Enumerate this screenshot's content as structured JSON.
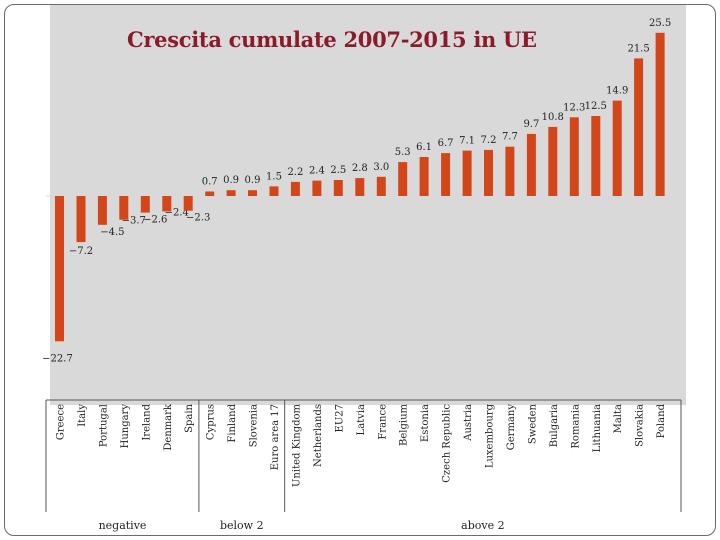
{
  "chart_data": {
    "type": "bar",
    "title": "Crescita cumulate 2007-2015 in UE",
    "xlabel": "",
    "ylabel": "",
    "ylim": [
      -24,
      27
    ],
    "grid": false,
    "categories": [
      "Greece",
      "Italy",
      "Portugal",
      "Hungary",
      "Ireland",
      "Denmark",
      "Spain",
      "Cyprus",
      "Finland",
      "Slovenia",
      "Euro area 17",
      "United Kingdom",
      "Netherlands",
      "EU27",
      "Latvia",
      "France",
      "Belgium",
      "Estonia",
      "Czech Republic",
      "Austria",
      "Luxembourg",
      "Germany",
      "Sweden",
      "Bulgaria",
      "Romania",
      "Lithuania",
      "Malta",
      "Slovakia",
      "Poland"
    ],
    "values": [
      -22.7,
      -7.2,
      -4.5,
      -3.7,
      -2.6,
      -2.4,
      -2.3,
      0.7,
      0.9,
      0.9,
      1.5,
      2.2,
      2.4,
      2.5,
      2.8,
      3.0,
      5.3,
      6.1,
      6.7,
      7.1,
      7.2,
      7.7,
      9.7,
      10.8,
      12.3,
      12.5,
      14.9,
      21.5,
      25.5
    ],
    "data_labels": [
      "−22.7",
      "−7.2",
      "−4.5",
      "−3.7",
      "−2.6",
      "−2.4",
      "−2.3",
      "0.7",
      "0.9",
      "0.9",
      "1.5",
      "2.2",
      "2.4",
      "2.5",
      "2.8",
      "3.0",
      "5.3",
      "6.1",
      "6.7",
      "7.1",
      "7.2",
      "7.7",
      "9.7",
      "10.8",
      "12.3",
      "12.5",
      "14.9",
      "21.5",
      "25.5"
    ],
    "groups": [
      {
        "label": "negative",
        "from": 0,
        "to": 6
      },
      {
        "label": "below 2",
        "from": 7,
        "to": 10
      },
      {
        "label": "above 2",
        "from": 11,
        "to": 28
      }
    ],
    "colors": {
      "bar": "#d3461a",
      "plot_background": "#d9d9d9",
      "title": "#8b1a2b"
    }
  }
}
